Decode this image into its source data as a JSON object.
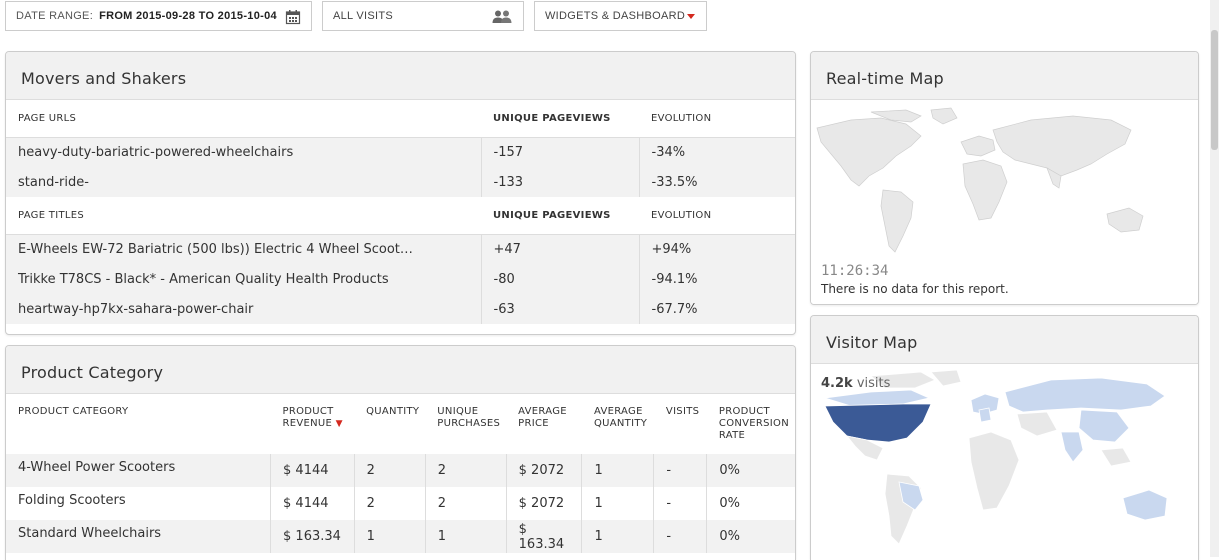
{
  "toolbar": {
    "date_label": "DATE RANGE:",
    "date_value": "FROM 2015-09-28 TO 2015-10-04",
    "segment": "ALL VISITS",
    "dashboard": "WIDGETS & DASHBOARD"
  },
  "movers": {
    "title": "Movers and Shakers",
    "urls_header": [
      "PAGE URLS",
      "UNIQUE PAGEVIEWS",
      "EVOLUTION"
    ],
    "urls": [
      {
        "label": "heavy-duty-bariatric-powered-wheelchairs",
        "value": "-157",
        "evolution": "-34%"
      },
      {
        "label": "stand-ride-",
        "value": "-133",
        "evolution": "-33.5%"
      }
    ],
    "titles_header": [
      "PAGE TITLES",
      "UNIQUE PAGEVIEWS",
      "EVOLUTION"
    ],
    "titles": [
      {
        "label": "E-Wheels EW-72 Bariatric (500 lbs)) Electric 4 Wheel Scoot…",
        "value": "+47",
        "evolution": "+94%"
      },
      {
        "label": "Trikke T78CS - Black* - American Quality Health Products",
        "value": "-80",
        "evolution": "-94.1%"
      },
      {
        "label": "heartway-hp7kx-sahara-power-chair",
        "value": "-63",
        "evolution": "-67.7%"
      }
    ]
  },
  "realtime": {
    "title": "Real-time Map",
    "time": "11:26:34",
    "message": "There is no data for this report."
  },
  "product": {
    "title": "Product Category",
    "headers": [
      "PRODUCT CATEGORY",
      "PRODUCT REVENUE",
      "QUANTITY",
      "UNIQUE PURCHASES",
      "AVERAGE PRICE",
      "AVERAGE QUANTITY",
      "VISITS",
      "PRODUCT CONVERSION RATE"
    ],
    "rows": [
      [
        "4-Wheel Power Scooters",
        "$ 4144",
        "2",
        "2",
        "$ 2072",
        "1",
        "-",
        "0%"
      ],
      [
        "Folding Scooters",
        "$ 4144",
        "2",
        "2",
        "$ 2072",
        "1",
        "-",
        "0%"
      ],
      [
        "Standard Wheelchairs",
        "$ 163.34",
        "1",
        "1",
        "$ 163.34",
        "1",
        "-",
        "0%"
      ]
    ]
  },
  "visitor": {
    "title": "Visitor Map",
    "visits_value": "4.2k",
    "visits_label": "visits"
  },
  "colors": {
    "negative": "#d4291f",
    "positive": "#3b9b3b",
    "map_land": "#e8e8e8",
    "map_light": "#c9d8ef",
    "map_dark": "#3b5a96"
  }
}
